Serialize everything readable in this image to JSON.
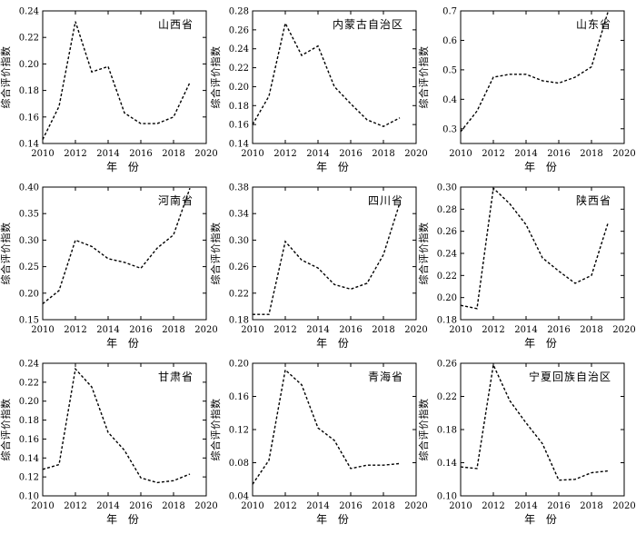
{
  "chart_data": [
    {
      "type": "line",
      "title": "山西省",
      "xlabel": "年 份",
      "ylabel": "综合评价指数",
      "xlim": [
        2010,
        2020
      ],
      "xticks": [
        2010,
        2012,
        2014,
        2016,
        2018,
        2020
      ],
      "ylim": [
        0.14,
        0.24
      ],
      "yticks": [
        0.14,
        0.16,
        0.18,
        0.2,
        0.22,
        0.24
      ],
      "ydec": 2,
      "x": [
        2010,
        2011,
        2012,
        2013,
        2014,
        2015,
        2016,
        2017,
        2018,
        2019
      ],
      "values": [
        0.143,
        0.168,
        0.232,
        0.194,
        0.198,
        0.163,
        0.155,
        0.155,
        0.16,
        0.186
      ]
    },
    {
      "type": "line",
      "title": "内蒙古自治区",
      "xlabel": "年 份",
      "ylabel": "综合评价指数",
      "xlim": [
        2010,
        2020
      ],
      "xticks": [
        2010,
        2012,
        2014,
        2016,
        2018,
        2020
      ],
      "ylim": [
        0.14,
        0.28
      ],
      "yticks": [
        0.14,
        0.16,
        0.18,
        0.2,
        0.22,
        0.24,
        0.26,
        0.28
      ],
      "ydec": 2,
      "x": [
        2010,
        2011,
        2012,
        2013,
        2014,
        2015,
        2016,
        2017,
        2018,
        2019
      ],
      "values": [
        0.16,
        0.19,
        0.267,
        0.233,
        0.243,
        0.2,
        0.182,
        0.165,
        0.158,
        0.167
      ]
    },
    {
      "type": "line",
      "title": "山东省",
      "xlabel": "年 份",
      "ylabel": "综合评价指数",
      "xlim": [
        2010,
        2020
      ],
      "xticks": [
        2010,
        2012,
        2014,
        2016,
        2018,
        2020
      ],
      "ylim": [
        0.25,
        0.7
      ],
      "yticks": [
        0.3,
        0.4,
        0.5,
        0.6,
        0.7
      ],
      "ydec": 1,
      "x": [
        2010,
        2011,
        2012,
        2013,
        2014,
        2015,
        2016,
        2017,
        2018,
        2019
      ],
      "values": [
        0.29,
        0.36,
        0.475,
        0.485,
        0.485,
        0.463,
        0.455,
        0.475,
        0.51,
        0.695
      ]
    },
    {
      "type": "line",
      "title": "河南省",
      "xlabel": "年 份",
      "ylabel": "综合评价指数",
      "xlim": [
        2010,
        2020
      ],
      "xticks": [
        2010,
        2012,
        2014,
        2016,
        2018,
        2020
      ],
      "ylim": [
        0.15,
        0.4
      ],
      "yticks": [
        0.15,
        0.2,
        0.25,
        0.3,
        0.35,
        0.4
      ],
      "ydec": 2,
      "x": [
        2010,
        2011,
        2012,
        2013,
        2014,
        2015,
        2016,
        2017,
        2018,
        2019
      ],
      "values": [
        0.18,
        0.205,
        0.3,
        0.288,
        0.265,
        0.258,
        0.247,
        0.285,
        0.31,
        0.398
      ]
    },
    {
      "type": "line",
      "title": "四川省",
      "xlabel": "年 份",
      "ylabel": "综合评价指数",
      "xlim": [
        2010,
        2020
      ],
      "xticks": [
        2010,
        2012,
        2014,
        2016,
        2018,
        2020
      ],
      "ylim": [
        0.18,
        0.38
      ],
      "yticks": [
        0.18,
        0.22,
        0.26,
        0.3,
        0.34,
        0.38
      ],
      "ydec": 2,
      "x": [
        2010,
        2011,
        2012,
        2013,
        2014,
        2015,
        2016,
        2017,
        2018,
        2019
      ],
      "values": [
        0.188,
        0.188,
        0.298,
        0.27,
        0.258,
        0.233,
        0.226,
        0.235,
        0.278,
        0.356
      ]
    },
    {
      "type": "line",
      "title": "陕西省",
      "xlabel": "年 份",
      "ylabel": "综合评价指数",
      "xlim": [
        2010,
        2020
      ],
      "xticks": [
        2010,
        2012,
        2014,
        2016,
        2018,
        2020
      ],
      "ylim": [
        0.18,
        0.3
      ],
      "yticks": [
        0.18,
        0.2,
        0.22,
        0.24,
        0.26,
        0.28,
        0.3
      ],
      "ydec": 2,
      "x": [
        2010,
        2011,
        2012,
        2013,
        2014,
        2015,
        2016,
        2017,
        2018,
        2019
      ],
      "values": [
        0.193,
        0.19,
        0.299,
        0.285,
        0.266,
        0.236,
        0.224,
        0.213,
        0.22,
        0.267
      ]
    },
    {
      "type": "line",
      "title": "甘肃省",
      "xlabel": "年 份",
      "ylabel": "综合评价指数",
      "xlim": [
        2010,
        2020
      ],
      "xticks": [
        2010,
        2012,
        2014,
        2016,
        2018,
        2020
      ],
      "ylim": [
        0.1,
        0.24
      ],
      "yticks": [
        0.1,
        0.12,
        0.14,
        0.16,
        0.18,
        0.2,
        0.22,
        0.24
      ],
      "ydec": 2,
      "x": [
        2010,
        2011,
        2012,
        2013,
        2014,
        2015,
        2016,
        2017,
        2018,
        2019
      ],
      "values": [
        0.128,
        0.133,
        0.234,
        0.215,
        0.167,
        0.148,
        0.119,
        0.114,
        0.116,
        0.123
      ]
    },
    {
      "type": "line",
      "title": "青海省",
      "xlabel": "年 份",
      "ylabel": "综合评价指数",
      "xlim": [
        2010,
        2020
      ],
      "xticks": [
        2010,
        2012,
        2014,
        2016,
        2018,
        2020
      ],
      "ylim": [
        0.04,
        0.2
      ],
      "yticks": [
        0.04,
        0.08,
        0.12,
        0.16,
        0.2
      ],
      "ydec": 2,
      "x": [
        2010,
        2011,
        2012,
        2013,
        2014,
        2015,
        2016,
        2017,
        2018,
        2019
      ],
      "values": [
        0.054,
        0.083,
        0.192,
        0.174,
        0.122,
        0.107,
        0.073,
        0.077,
        0.077,
        0.079
      ]
    },
    {
      "type": "line",
      "title": "宁夏回族自治区",
      "xlabel": "年 份",
      "ylabel": "综合评价指数",
      "xlim": [
        2010,
        2020
      ],
      "xticks": [
        2010,
        2012,
        2014,
        2016,
        2018,
        2020
      ],
      "ylim": [
        0.1,
        0.26
      ],
      "yticks": [
        0.1,
        0.14,
        0.18,
        0.22,
        0.26
      ],
      "ydec": 2,
      "x": [
        2010,
        2011,
        2012,
        2013,
        2014,
        2015,
        2016,
        2017,
        2018,
        2019
      ],
      "values": [
        0.135,
        0.133,
        0.258,
        0.215,
        0.188,
        0.163,
        0.119,
        0.12,
        0.128,
        0.13
      ]
    }
  ]
}
